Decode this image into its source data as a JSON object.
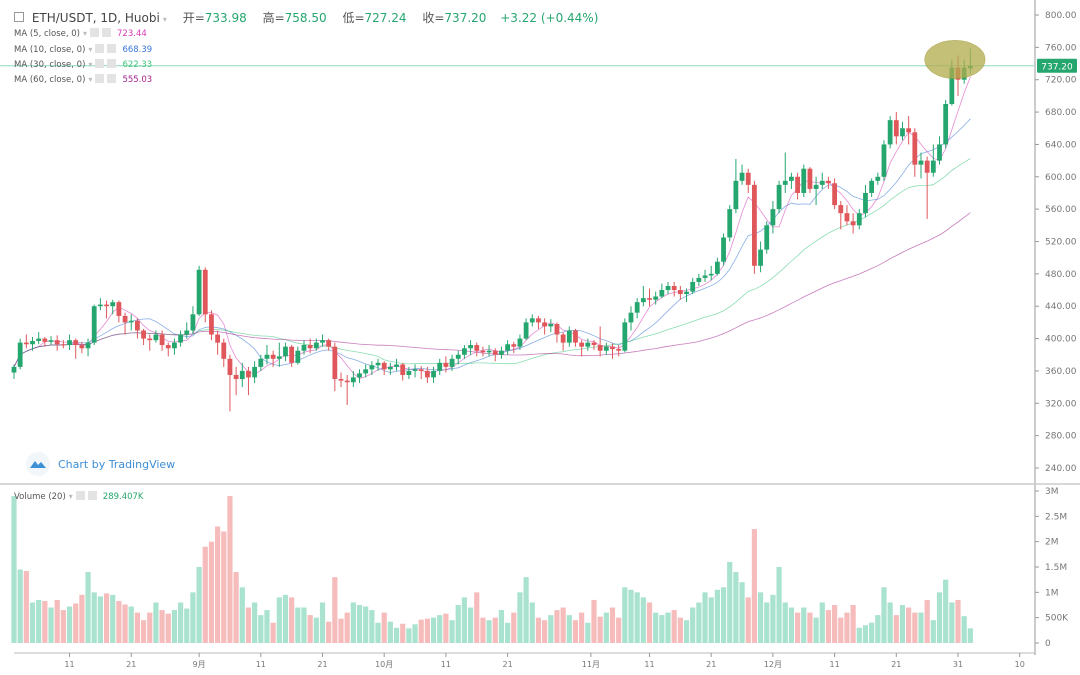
{
  "header": {
    "symbol": "ETH/USDT, 1D, Huobi",
    "open_label": "开=",
    "open": "733.98",
    "high_label": "高=",
    "high": "758.50",
    "low_label": "低=",
    "low": "727.24",
    "close_label": "收=",
    "close": "737.20",
    "change": "+3.22 (+0.44%)"
  },
  "indicators": [
    {
      "label": "MA (5, close, 0)",
      "value": "723.44",
      "color": "#d63ab8"
    },
    {
      "label": "MA (10, close, 0)",
      "value": "668.39",
      "color": "#3a78d6"
    },
    {
      "label": "MA (30, close, 0)",
      "value": "622.33",
      "color": "#3cc47c"
    },
    {
      "label": "MA (60, close, 0)",
      "value": "555.03",
      "color": "#a3238f"
    }
  ],
  "volume_indicator": {
    "label": "Volume (20)",
    "value": "289.407K"
  },
  "watermark": "Chart by TradingView",
  "last_price_label": "737.20",
  "colors": {
    "up": "#26a66f",
    "down": "#e0575b",
    "vol_up": "#a9e2cf",
    "vol_down": "#f6bcbc",
    "highlight": "#b2ac4c"
  },
  "chart_data": {
    "type": "candlestick",
    "price_axis": {
      "range": [
        240,
        800
      ],
      "ticks": [
        "800.00",
        "760.00",
        "720.00",
        "680.00",
        "640.00",
        "600.00",
        "560.00",
        "520.00",
        "480.00",
        "440.00",
        "400.00",
        "360.00",
        "320.00",
        "280.00",
        "240.00"
      ]
    },
    "volume_axis": {
      "range": [
        0,
        3000
      ],
      "unit": "K",
      "ticks": [
        {
          "v": 3000,
          "label": "3M"
        },
        {
          "v": 2500,
          "label": "2.5M"
        },
        {
          "v": 2000,
          "label": "2M"
        },
        {
          "v": 1500,
          "label": "1.5M"
        },
        {
          "v": 1000,
          "label": "1M"
        },
        {
          "v": 500,
          "label": "500K"
        },
        {
          "v": 0,
          "label": "0"
        }
      ]
    },
    "time_ticks": [
      {
        "label": "11",
        "index": 9
      },
      {
        "label": "21",
        "index": 19
      },
      {
        "label": "9月",
        "index": 30
      },
      {
        "label": "11",
        "index": 40
      },
      {
        "label": "21",
        "index": 50
      },
      {
        "label": "10月",
        "index": 60
      },
      {
        "label": "11",
        "index": 70
      },
      {
        "label": "21",
        "index": 80
      },
      {
        "label": "11月",
        "index": 93.5
      },
      {
        "label": "11",
        "index": 103
      },
      {
        "label": "21",
        "index": 113
      },
      {
        "label": "12月",
        "index": 123
      },
      {
        "label": "11",
        "index": 133
      },
      {
        "label": "21",
        "index": 143
      },
      {
        "label": "31",
        "index": 153
      },
      {
        "label": "10",
        "index": 163
      }
    ],
    "annotation": {
      "shape": "ellipse",
      "index": 152.5,
      "price": 745
    },
    "candles_ohlc": [
      [
        358,
        368,
        350,
        365
      ],
      [
        365,
        400,
        362,
        395
      ],
      [
        395,
        405,
        388,
        393
      ],
      [
        393,
        402,
        385,
        397
      ],
      [
        397,
        408,
        393,
        400
      ],
      [
        400,
        402,
        390,
        396
      ],
      [
        396,
        403,
        392,
        398
      ],
      [
        398,
        404,
        385,
        393
      ],
      [
        393,
        398,
        388,
        392
      ],
      [
        392,
        405,
        386,
        398
      ],
      [
        398,
        400,
        375,
        392
      ],
      [
        392,
        396,
        382,
        388
      ],
      [
        388,
        400,
        378,
        395
      ],
      [
        395,
        442,
        392,
        440
      ],
      [
        440,
        450,
        435,
        442
      ],
      [
        442,
        447,
        425,
        440
      ],
      [
        440,
        448,
        430,
        445
      ],
      [
        445,
        447,
        420,
        428
      ],
      [
        428,
        432,
        405,
        420
      ],
      [
        420,
        430,
        410,
        422
      ],
      [
        422,
        425,
        400,
        410
      ],
      [
        410,
        412,
        392,
        400
      ],
      [
        400,
        405,
        385,
        398
      ],
      [
        398,
        410,
        395,
        405
      ],
      [
        405,
        410,
        385,
        392
      ],
      [
        392,
        395,
        378,
        388
      ],
      [
        388,
        400,
        380,
        395
      ],
      [
        395,
        410,
        390,
        405
      ],
      [
        405,
        420,
        400,
        410
      ],
      [
        410,
        440,
        405,
        430
      ],
      [
        430,
        490,
        428,
        485
      ],
      [
        485,
        488,
        420,
        430
      ],
      [
        430,
        435,
        398,
        405
      ],
      [
        405,
        410,
        380,
        395
      ],
      [
        395,
        400,
        365,
        375
      ],
      [
        375,
        380,
        310,
        355
      ],
      [
        355,
        365,
        330,
        350
      ],
      [
        350,
        370,
        340,
        360
      ],
      [
        360,
        365,
        330,
        352
      ],
      [
        352,
        372,
        345,
        365
      ],
      [
        365,
        380,
        360,
        375
      ],
      [
        375,
        392,
        368,
        380
      ],
      [
        380,
        385,
        365,
        375
      ],
      [
        375,
        395,
        365,
        378
      ],
      [
        378,
        395,
        372,
        390
      ],
      [
        390,
        392,
        365,
        370
      ],
      [
        370,
        390,
        368,
        385
      ],
      [
        385,
        398,
        380,
        392
      ],
      [
        392,
        400,
        382,
        388
      ],
      [
        388,
        400,
        385,
        395
      ],
      [
        395,
        405,
        390,
        398
      ],
      [
        398,
        400,
        385,
        390
      ],
      [
        390,
        395,
        335,
        350
      ],
      [
        350,
        358,
        340,
        348
      ],
      [
        348,
        355,
        318,
        346
      ],
      [
        346,
        360,
        340,
        352
      ],
      [
        352,
        362,
        345,
        357
      ],
      [
        357,
        368,
        352,
        362
      ],
      [
        362,
        372,
        355,
        367
      ],
      [
        367,
        375,
        360,
        370
      ],
      [
        370,
        372,
        355,
        362
      ],
      [
        362,
        370,
        355,
        365
      ],
      [
        365,
        375,
        360,
        368
      ],
      [
        368,
        370,
        348,
        355
      ],
      [
        355,
        365,
        350,
        360
      ],
      [
        360,
        368,
        352,
        362
      ],
      [
        362,
        366,
        350,
        360
      ],
      [
        360,
        365,
        345,
        352
      ],
      [
        352,
        365,
        345,
        360
      ],
      [
        360,
        375,
        355,
        370
      ],
      [
        370,
        378,
        358,
        365
      ],
      [
        365,
        380,
        360,
        375
      ],
      [
        375,
        385,
        368,
        380
      ],
      [
        380,
        392,
        375,
        388
      ],
      [
        388,
        398,
        380,
        392
      ],
      [
        392,
        395,
        378,
        385
      ],
      [
        385,
        390,
        378,
        383
      ],
      [
        383,
        392,
        378,
        385
      ],
      [
        385,
        388,
        372,
        380
      ],
      [
        380,
        390,
        375,
        385
      ],
      [
        385,
        398,
        380,
        393
      ],
      [
        393,
        396,
        382,
        390
      ],
      [
        390,
        405,
        386,
        400
      ],
      [
        400,
        425,
        398,
        420
      ],
      [
        420,
        430,
        415,
        425
      ],
      [
        425,
        428,
        412,
        420
      ],
      [
        420,
        425,
        405,
        415
      ],
      [
        415,
        424,
        408,
        418
      ],
      [
        418,
        420,
        395,
        405
      ],
      [
        405,
        408,
        385,
        395
      ],
      [
        395,
        415,
        390,
        410
      ],
      [
        410,
        412,
        390,
        395
      ],
      [
        395,
        398,
        378,
        390
      ],
      [
        390,
        400,
        385,
        395
      ],
      [
        395,
        398,
        386,
        392
      ],
      [
        392,
        415,
        378,
        385
      ],
      [
        385,
        395,
        380,
        390
      ],
      [
        390,
        394,
        375,
        387
      ],
      [
        387,
        392,
        378,
        385
      ],
      [
        385,
        425,
        383,
        420
      ],
      [
        420,
        440,
        410,
        432
      ],
      [
        432,
        450,
        425,
        445
      ],
      [
        445,
        465,
        440,
        450
      ],
      [
        450,
        462,
        440,
        448
      ],
      [
        448,
        458,
        442,
        452
      ],
      [
        452,
        468,
        450,
        460
      ],
      [
        460,
        470,
        455,
        465
      ],
      [
        465,
        470,
        452,
        460
      ],
      [
        460,
        465,
        448,
        455
      ],
      [
        455,
        462,
        445,
        458
      ],
      [
        458,
        475,
        455,
        470
      ],
      [
        470,
        480,
        465,
        475
      ],
      [
        475,
        485,
        470,
        478
      ],
      [
        478,
        490,
        472,
        480
      ],
      [
        480,
        500,
        478,
        495
      ],
      [
        495,
        530,
        490,
        525
      ],
      [
        525,
        565,
        520,
        560
      ],
      [
        560,
        622,
        555,
        595
      ],
      [
        595,
        615,
        590,
        605
      ],
      [
        605,
        610,
        580,
        590
      ],
      [
        590,
        595,
        480,
        490
      ],
      [
        490,
        520,
        482,
        510
      ],
      [
        510,
        545,
        505,
        540
      ],
      [
        540,
        570,
        530,
        560
      ],
      [
        560,
        595,
        555,
        590
      ],
      [
        590,
        630,
        580,
        595
      ],
      [
        595,
        605,
        585,
        600
      ],
      [
        600,
        605,
        572,
        580
      ],
      [
        580,
        615,
        575,
        610
      ],
      [
        610,
        612,
        580,
        585
      ],
      [
        585,
        600,
        565,
        590
      ],
      [
        590,
        605,
        585,
        595
      ],
      [
        595,
        600,
        585,
        592
      ],
      [
        592,
        598,
        560,
        565
      ],
      [
        565,
        570,
        535,
        555
      ],
      [
        555,
        565,
        540,
        545
      ],
      [
        545,
        555,
        530,
        540
      ],
      [
        540,
        560,
        535,
        555
      ],
      [
        555,
        590,
        550,
        580
      ],
      [
        580,
        598,
        575,
        595
      ],
      [
        595,
        605,
        590,
        600
      ],
      [
        600,
        645,
        595,
        640
      ],
      [
        640,
        675,
        635,
        670
      ],
      [
        670,
        680,
        640,
        650
      ],
      [
        650,
        668,
        645,
        660
      ],
      [
        660,
        675,
        640,
        655
      ],
      [
        655,
        660,
        600,
        615
      ],
      [
        615,
        630,
        598,
        620
      ],
      [
        620,
        625,
        548,
        605
      ],
      [
        605,
        640,
        600,
        620
      ],
      [
        620,
        650,
        615,
        640
      ],
      [
        640,
        695,
        635,
        690
      ],
      [
        690,
        745,
        688,
        735
      ],
      [
        735,
        750,
        700,
        720
      ],
      [
        720,
        745,
        715,
        735
      ],
      [
        733.98,
        758.5,
        727.24,
        737.2
      ]
    ],
    "volume_k": [
      2900,
      1450,
      1420,
      800,
      850,
      830,
      700,
      850,
      650,
      720,
      780,
      950,
      1400,
      1000,
      920,
      980,
      950,
      830,
      760,
      720,
      600,
      450,
      600,
      800,
      650,
      580,
      650,
      800,
      680,
      1000,
      1500,
      1900,
      2000,
      2300,
      2200,
      2900,
      1400,
      1100,
      700,
      800,
      550,
      650,
      400,
      900,
      950,
      900,
      700,
      700,
      550,
      500,
      800,
      420,
      1300,
      480,
      600,
      800,
      750,
      720,
      650,
      400,
      600,
      420,
      300,
      380,
      290,
      370,
      460,
      480,
      500,
      550,
      580,
      450,
      750,
      900,
      700,
      1000,
      500,
      450,
      500,
      650,
      400,
      600,
      1000,
      1300,
      800,
      500,
      450,
      550,
      650,
      700,
      550,
      450,
      600,
      400,
      850,
      520,
      600,
      700,
      500,
      1100,
      1050,
      1000,
      900,
      800,
      600,
      550,
      600,
      650,
      500,
      450,
      700,
      800,
      1000,
      900,
      1050,
      1100,
      1600,
      1400,
      1200,
      900,
      2250,
      1000,
      800,
      950,
      1500,
      800,
      700,
      600,
      700,
      600,
      500,
      800,
      650,
      750,
      500,
      600,
      750,
      300,
      350,
      400,
      550,
      1100,
      800,
      550,
      750,
      700,
      600,
      600,
      850,
      450,
      1000,
      1250,
      800,
      850,
      530,
      289.407
    ],
    "moving_averages": [
      5,
      10,
      30,
      60
    ]
  }
}
